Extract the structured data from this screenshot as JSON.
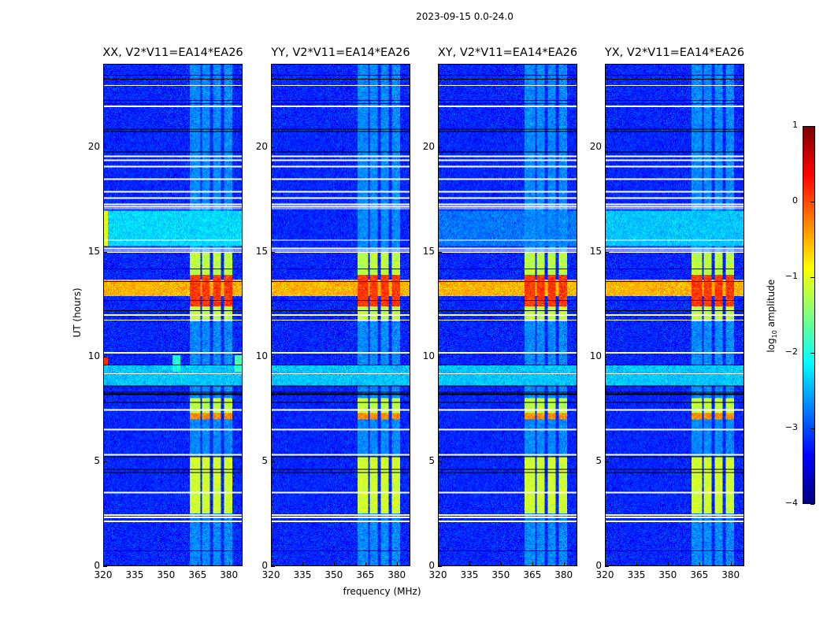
{
  "suptitle": "2023-09-15 0.0-24.0",
  "chart_data": {
    "type": "heatmap",
    "title": "2023-09-15 0.0-24.0",
    "xlabel": "frequency (MHz)",
    "ylabel": "UT (hours)",
    "xlim": [
      320,
      386.5
    ],
    "ylim": [
      0,
      24
    ],
    "xticks": [
      "320",
      "335",
      "350",
      "365",
      "380"
    ],
    "xtick_values": [
      320,
      335,
      350,
      365,
      380
    ],
    "yticks": [
      "0",
      "5",
      "10",
      "15",
      "20"
    ],
    "ytick_values": [
      0,
      5,
      10,
      15,
      20
    ],
    "panels": [
      {
        "title": "XX, V2*V11=EA14*EA26",
        "extra": [
          {
            "t": [
              15.3,
              17.0
            ],
            "f": [
              320,
              386.5
            ],
            "v": -2.3
          },
          {
            "t": [
              9.6,
              10.0
            ],
            "f": [
              320,
              322
            ],
            "v": 0.2
          },
          {
            "t": [
              9.3,
              10.1
            ],
            "f": [
              353,
              357
            ],
            "v": -2.0
          },
          {
            "t": [
              9.3,
              10.1
            ],
            "f": [
              383,
              386.5
            ],
            "v": -1.8
          },
          {
            "t": [
              15.3,
              17.0
            ],
            "f": [
              320,
              322
            ],
            "v": -1.0
          }
        ]
      },
      {
        "title": "YY, V2*V11=EA14*EA26",
        "extra": []
      },
      {
        "title": "XY, V2*V11=EA14*EA26",
        "extra": [
          {
            "t": [
              15.3,
              17.0
            ],
            "f": [
              320,
              386.5
            ],
            "v": -2.8
          }
        ]
      },
      {
        "title": "YX, V2*V11=EA14*EA26",
        "extra": [
          {
            "t": [
              15.3,
              17.0
            ],
            "f": [
              320,
              386.5
            ],
            "v": -2.4
          }
        ]
      }
    ],
    "background_level": -3.2,
    "subbands_mhz": [
      [
        361.5,
        366.5
      ],
      [
        367.5,
        371
      ],
      [
        372.5,
        376.5
      ],
      [
        378,
        382
      ]
    ],
    "features": [
      {
        "t": [
          0,
          24
        ],
        "sub": true,
        "v": -2.7
      },
      {
        "t": [
          2.5,
          5.2
        ],
        "sub": true,
        "v": -1.1
      },
      {
        "t": [
          7.0,
          8.0
        ],
        "sub": true,
        "v": -1.2
      },
      {
        "t": [
          7.0,
          7.3
        ],
        "sub": true,
        "v": -0.3
      },
      {
        "t": [
          11.7,
          15.0
        ],
        "sub": true,
        "v": -1.2
      },
      {
        "t": [
          12.4,
          13.9
        ],
        "sub": true,
        "v": 0.1
      },
      {
        "t": [
          12.9,
          13.7
        ],
        "f": [
          320,
          386.5
        ],
        "v": -0.5
      },
      {
        "t": [
          8.6,
          9.6
        ],
        "f": [
          320,
          386.5
        ],
        "v": -2.4
      }
    ],
    "flagged_hours": [
      23.0,
      22.0,
      19.6,
      19.4,
      19.1,
      18.5,
      17.9,
      17.6,
      17.1,
      17.2,
      17.3,
      15.6,
      15.0,
      15.1,
      15.2,
      12.0,
      11.75,
      10.2,
      9.2,
      7.45,
      6.5,
      5.3,
      3.5,
      2.3,
      2.4,
      2.1
    ],
    "gap_hours": [
      23.5,
      23.3,
      22.3,
      22.15,
      20.9,
      20.8,
      19.8,
      14.2,
      13.6,
      12.7,
      12.2,
      9.6,
      8.6,
      8.3,
      8.2,
      7.8,
      5.2,
      4.6,
      4.45,
      0.7
    ],
    "colorbar": {
      "label": "log10 amplitude",
      "label_main": "log",
      "label_sub": "10",
      "label_rest": " amplitude",
      "range": [
        -4,
        1
      ],
      "ticks": [
        "1",
        "0",
        "−1",
        "−2",
        "−3",
        "−4"
      ],
      "tick_values": [
        1,
        0,
        -1,
        -2,
        -3,
        -4
      ],
      "colormap": "jet"
    }
  }
}
